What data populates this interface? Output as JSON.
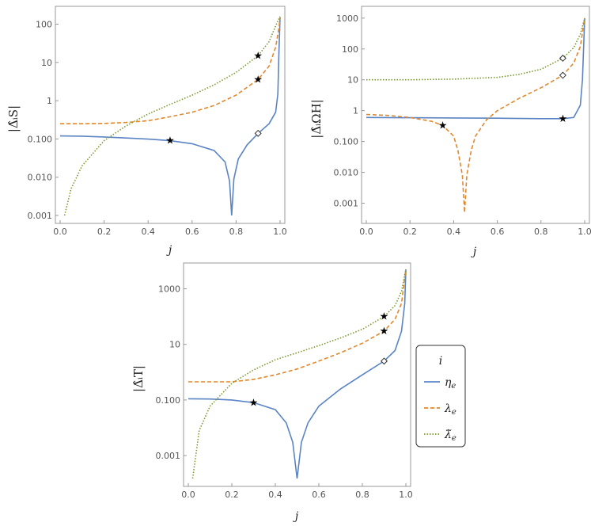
{
  "chart_data": [
    {
      "type": "line",
      "panel": "top-left",
      "ylabel": "|Δ̂ᵢS|",
      "xlabel": "j",
      "xlim": [
        0,
        1
      ],
      "ylim": [
        0.001,
        200
      ],
      "yscale": "log",
      "x_ticks": [
        "0.0",
        "0.2",
        "0.4",
        "0.6",
        "0.8",
        "1.0"
      ],
      "y_ticks": [
        "0.001",
        "0.010",
        "0.100",
        "1",
        "10",
        "100"
      ],
      "series": [
        {
          "name": "ηe",
          "points": [
            [
              0.0,
              0.12
            ],
            [
              0.1,
              0.118
            ],
            [
              0.2,
              0.113
            ],
            [
              0.3,
              0.106
            ],
            [
              0.4,
              0.099
            ],
            [
              0.5,
              0.09
            ],
            [
              0.6,
              0.075
            ],
            [
              0.7,
              0.05
            ],
            [
              0.75,
              0.025
            ],
            [
              0.77,
              0.008
            ],
            [
              0.78,
              0.001
            ],
            [
              0.79,
              0.009
            ],
            [
              0.81,
              0.03
            ],
            [
              0.85,
              0.07
            ],
            [
              0.9,
              0.14
            ],
            [
              0.95,
              0.25
            ],
            [
              0.98,
              0.5
            ],
            [
              0.99,
              1.5
            ],
            [
              0.995,
              20
            ],
            [
              1.0,
              150
            ]
          ]
        },
        {
          "name": "λe",
          "points": [
            [
              0.0,
              0.25
            ],
            [
              0.1,
              0.25
            ],
            [
              0.2,
              0.255
            ],
            [
              0.3,
              0.27
            ],
            [
              0.4,
              0.3
            ],
            [
              0.5,
              0.38
            ],
            [
              0.6,
              0.5
            ],
            [
              0.7,
              0.75
            ],
            [
              0.8,
              1.4
            ],
            [
              0.9,
              3.6
            ],
            [
              0.95,
              8
            ],
            [
              0.98,
              25
            ],
            [
              0.995,
              80
            ],
            [
              1.0,
              150
            ]
          ]
        },
        {
          "name": "λ̃e",
          "points": [
            [
              0.02,
              0.001
            ],
            [
              0.05,
              0.005
            ],
            [
              0.1,
              0.02
            ],
            [
              0.2,
              0.09
            ],
            [
              0.3,
              0.22
            ],
            [
              0.4,
              0.45
            ],
            [
              0.5,
              0.8
            ],
            [
              0.6,
              1.4
            ],
            [
              0.7,
              2.6
            ],
            [
              0.8,
              5.5
            ],
            [
              0.9,
              15
            ],
            [
              0.95,
              35
            ],
            [
              0.98,
              90
            ],
            [
              1.0,
              160
            ]
          ]
        }
      ],
      "markers": [
        {
          "series": "ηe",
          "shape": "star",
          "x": 0.5,
          "y": 0.09
        },
        {
          "series": "ηe",
          "shape": "diamond",
          "x": 0.9,
          "y": 0.14
        },
        {
          "series": "λe",
          "shape": "star",
          "x": 0.9,
          "y": 3.6
        },
        {
          "series": "λ̃e",
          "shape": "star",
          "x": 0.9,
          "y": 15
        }
      ]
    },
    {
      "type": "line",
      "panel": "top-right",
      "ylabel": "|Δ̂ᵢΩH|",
      "xlabel": "j",
      "xlim": [
        0,
        1
      ],
      "ylim": [
        0.0004,
        1500
      ],
      "yscale": "log",
      "x_ticks": [
        "0.0",
        "0.2",
        "0.4",
        "0.6",
        "0.8",
        "1.0"
      ],
      "y_ticks": [
        "0.001",
        "0.010",
        "0.100",
        "1",
        "10",
        "100",
        "1000"
      ],
      "series": [
        {
          "name": "ηe",
          "points": [
            [
              0.0,
              0.6
            ],
            [
              0.2,
              0.59
            ],
            [
              0.4,
              0.58
            ],
            [
              0.6,
              0.57
            ],
            [
              0.8,
              0.55
            ],
            [
              0.9,
              0.55
            ],
            [
              0.95,
              0.6
            ],
            [
              0.98,
              1.5
            ],
            [
              0.99,
              10
            ],
            [
              1.0,
              1000
            ]
          ]
        },
        {
          "name": "λe",
          "points": [
            [
              0.0,
              0.75
            ],
            [
              0.1,
              0.7
            ],
            [
              0.2,
              0.6
            ],
            [
              0.3,
              0.45
            ],
            [
              0.35,
              0.33
            ],
            [
              0.4,
              0.15
            ],
            [
              0.42,
              0.05
            ],
            [
              0.44,
              0.008
            ],
            [
              0.45,
              0.0005
            ],
            [
              0.46,
              0.008
            ],
            [
              0.48,
              0.05
            ],
            [
              0.5,
              0.15
            ],
            [
              0.55,
              0.5
            ],
            [
              0.6,
              1.0
            ],
            [
              0.7,
              2.5
            ],
            [
              0.8,
              5.5
            ],
            [
              0.9,
              14
            ],
            [
              0.95,
              35
            ],
            [
              0.98,
              120
            ],
            [
              1.0,
              1000
            ]
          ]
        },
        {
          "name": "λ̃e",
          "points": [
            [
              0.0,
              10
            ],
            [
              0.2,
              10
            ],
            [
              0.4,
              10.5
            ],
            [
              0.6,
              12
            ],
            [
              0.7,
              15
            ],
            [
              0.8,
              22
            ],
            [
              0.9,
              50
            ],
            [
              0.95,
              110
            ],
            [
              0.98,
              300
            ],
            [
              1.0,
              1000
            ]
          ]
        }
      ],
      "markers": [
        {
          "series": "λe",
          "shape": "star",
          "x": 0.35,
          "y": 0.33
        },
        {
          "series": "ηe",
          "shape": "star",
          "x": 0.9,
          "y": 0.55
        },
        {
          "series": "λe",
          "shape": "diamond",
          "x": 0.9,
          "y": 14
        },
        {
          "series": "λ̃e",
          "shape": "diamond",
          "x": 0.9,
          "y": 50
        }
      ]
    },
    {
      "type": "line",
      "panel": "bottom",
      "ylabel": "|Δ̂ᵢT|",
      "xlabel": "j",
      "xlim": [
        0,
        1
      ],
      "ylim": [
        0.00015,
        5000
      ],
      "yscale": "log",
      "x_ticks": [
        "0.0",
        "0.2",
        "0.4",
        "0.6",
        "0.8",
        "1.0"
      ],
      "y_ticks": [
        "0.001",
        "0.100",
        "10",
        "1000"
      ],
      "series": [
        {
          "name": "ηe",
          "points": [
            [
              0.0,
              0.11
            ],
            [
              0.1,
              0.108
            ],
            [
              0.2,
              0.1
            ],
            [
              0.3,
              0.08
            ],
            [
              0.4,
              0.045
            ],
            [
              0.45,
              0.015
            ],
            [
              0.48,
              0.003
            ],
            [
              0.5,
              0.00015
            ],
            [
              0.52,
              0.003
            ],
            [
              0.55,
              0.015
            ],
            [
              0.6,
              0.06
            ],
            [
              0.7,
              0.25
            ],
            [
              0.8,
              0.8
            ],
            [
              0.9,
              2.5
            ],
            [
              0.95,
              6
            ],
            [
              0.98,
              30
            ],
            [
              0.995,
              300
            ],
            [
              1.0,
              5000
            ]
          ]
        },
        {
          "name": "λe",
          "points": [
            [
              0.0,
              0.45
            ],
            [
              0.1,
              0.45
            ],
            [
              0.2,
              0.45
            ],
            [
              0.3,
              0.55
            ],
            [
              0.4,
              0.8
            ],
            [
              0.5,
              1.3
            ],
            [
              0.6,
              2.5
            ],
            [
              0.7,
              5
            ],
            [
              0.8,
              11
            ],
            [
              0.9,
              30
            ],
            [
              0.95,
              80
            ],
            [
              0.98,
              300
            ],
            [
              1.0,
              5000
            ]
          ]
        },
        {
          "name": "λ̃e",
          "points": [
            [
              0.02,
              0.00015
            ],
            [
              0.05,
              0.008
            ],
            [
              0.1,
              0.06
            ],
            [
              0.2,
              0.4
            ],
            [
              0.3,
              1.2
            ],
            [
              0.4,
              2.8
            ],
            [
              0.5,
              5
            ],
            [
              0.6,
              9
            ],
            [
              0.7,
              17
            ],
            [
              0.8,
              35
            ],
            [
              0.9,
              100
            ],
            [
              0.95,
              250
            ],
            [
              0.98,
              800
            ],
            [
              1.0,
              5000
            ]
          ]
        }
      ],
      "markers": [
        {
          "series": "ηe",
          "shape": "star",
          "x": 0.3,
          "y": 0.08
        },
        {
          "series": "ηe",
          "shape": "diamond",
          "x": 0.9,
          "y": 2.5
        },
        {
          "series": "λe",
          "shape": "star",
          "x": 0.9,
          "y": 30
        },
        {
          "series": "λ̃e",
          "shape": "star",
          "x": 0.9,
          "y": 100
        }
      ]
    }
  ],
  "legend": {
    "title": "i",
    "items": [
      {
        "label": "ηe",
        "main": "η",
        "sub": "e",
        "color": "#5b84c4",
        "dash": ""
      },
      {
        "label": "λe",
        "main": "λ",
        "sub": "e",
        "color": "#e1882e",
        "dash": "5,3"
      },
      {
        "label": "λ̃e",
        "main": "λ̃",
        "sub": "e",
        "color": "#7a9a2e",
        "dash": "1.5,2"
      }
    ]
  },
  "colors": {
    "eta": "#5b84c4",
    "lambda": "#e1882e",
    "lambdatilde": "#7a9a2e"
  }
}
